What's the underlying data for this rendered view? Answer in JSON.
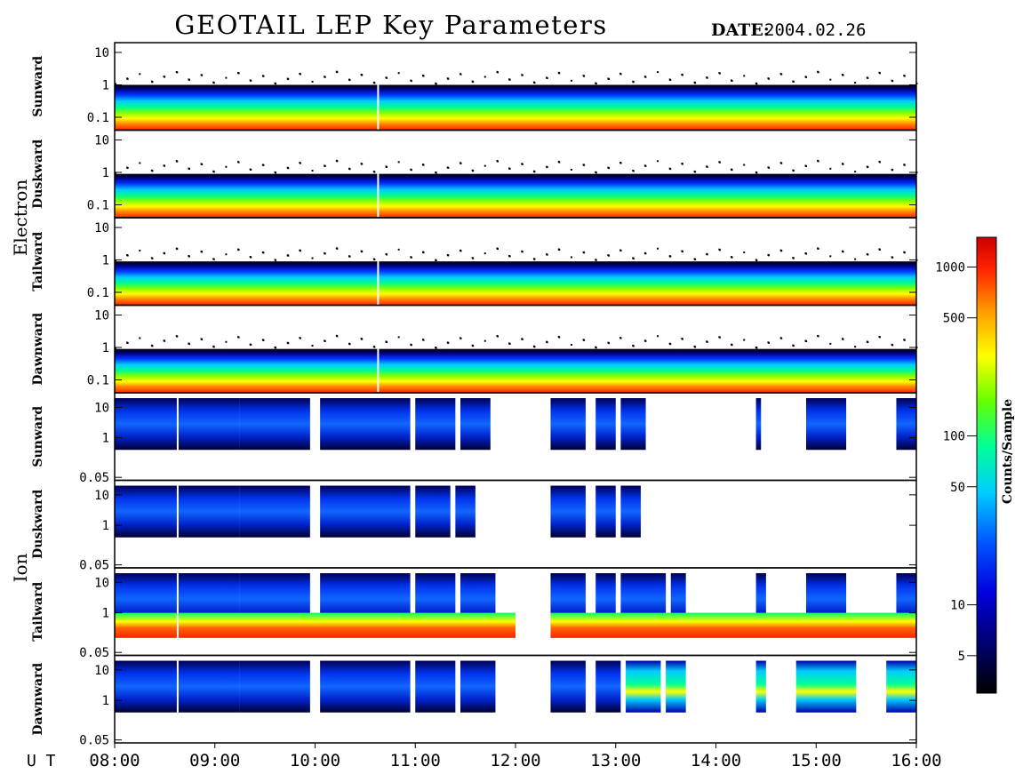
{
  "chart_data": {
    "type": "heatmap",
    "title": "GEOTAIL LEP Key Parameters",
    "date_label": "DATE:",
    "date_value": "2004.02.26",
    "x_axis": {
      "label": "U T",
      "ticks": [
        "08:00",
        "09:00",
        "10:00",
        "11:00",
        "12:00",
        "13:00",
        "14:00",
        "15:00",
        "16:00"
      ],
      "range": [
        8,
        16
      ]
    },
    "groups": [
      {
        "name": "Electron",
        "y_ticks": [
          "10",
          "1",
          "0.1"
        ],
        "y_tick_values": [
          10,
          1,
          0.1
        ],
        "y_range": [
          0.04,
          20
        ],
        "y_scale": "log",
        "panels": [
          {
            "name": "Sunward",
            "band_top": 1.0
          },
          {
            "name": "Duskward",
            "band_top": 0.9
          },
          {
            "name": "Tailward",
            "band_top": 0.9
          },
          {
            "name": "Dawnward",
            "band_top": 0.9
          }
        ]
      },
      {
        "name": "Ion",
        "y_ticks": [
          "10",
          "1",
          "0.05"
        ],
        "y_tick_values": [
          10,
          1,
          0.05
        ],
        "y_range": [
          0.04,
          30
        ],
        "y_scale": "log",
        "panels": [
          {
            "name": "Sunward",
            "segments": [
              [
                8.0,
                9.25
              ],
              [
                9.25,
                9.95
              ],
              [
                10.05,
                10.95
              ],
              [
                11.0,
                11.4
              ],
              [
                11.45,
                11.75
              ],
              [
                12.35,
                12.7
              ],
              [
                12.8,
                13.0
              ],
              [
                13.05,
                13.3
              ],
              [
                14.4,
                14.45
              ],
              [
                14.9,
                15.3
              ],
              [
                15.8,
                16.0
              ]
            ]
          },
          {
            "name": "Duskward",
            "segments": [
              [
                8.0,
                9.25
              ],
              [
                9.25,
                9.95
              ],
              [
                10.05,
                10.95
              ],
              [
                11.0,
                11.35
              ],
              [
                11.4,
                11.6
              ],
              [
                12.35,
                12.7
              ],
              [
                12.8,
                13.0
              ],
              [
                13.05,
                13.25
              ]
            ]
          },
          {
            "name": "Tailward",
            "segments": [
              [
                8.0,
                9.25
              ],
              [
                9.25,
                9.95
              ],
              [
                10.05,
                10.95
              ],
              [
                11.0,
                11.4
              ],
              [
                11.45,
                11.8
              ],
              [
                12.35,
                12.7
              ],
              [
                12.8,
                13.0
              ],
              [
                13.05,
                13.5
              ],
              [
                13.55,
                13.7
              ],
              [
                14.4,
                14.5
              ],
              [
                14.9,
                15.3
              ],
              [
                15.8,
                16.0
              ]
            ],
            "low_band": true
          },
          {
            "name": "Dawnward",
            "segments": [
              [
                8.0,
                9.25
              ],
              [
                9.25,
                9.95
              ],
              [
                10.05,
                10.95
              ],
              [
                11.0,
                11.4
              ],
              [
                11.45,
                11.8
              ],
              [
                12.35,
                12.7
              ],
              [
                12.8,
                13.05
              ],
              [
                13.1,
                13.45
              ],
              [
                13.5,
                13.7
              ],
              [
                14.4,
                14.5
              ],
              [
                14.8,
                15.4
              ],
              [
                15.7,
                16.0
              ]
            ]
          }
        ]
      }
    ],
    "colorbar": {
      "label": "Counts/Sample",
      "scale": "log",
      "range": [
        3,
        1500
      ],
      "ticks": [
        1000,
        500,
        100,
        50,
        10,
        5
      ],
      "tick_labels": [
        "1000",
        "500",
        "100",
        "50",
        "10",
        "5"
      ],
      "colors": [
        "#000000",
        "#000066",
        "#0000dd",
        "#0055ff",
        "#00ccff",
        "#00ff99",
        "#66ff00",
        "#ffff00",
        "#ff9900",
        "#ff2200",
        "#cc0000"
      ]
    }
  }
}
